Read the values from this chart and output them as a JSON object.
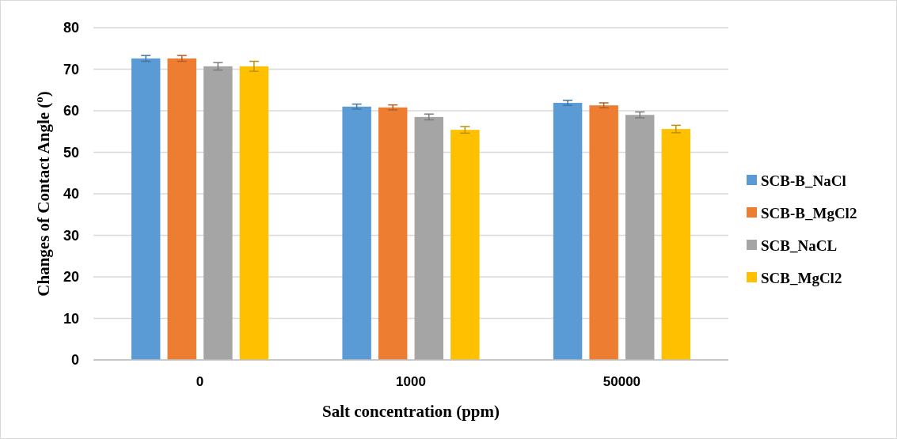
{
  "chart_data": {
    "type": "bar",
    "xlabel": "Salt concentration (ppm)",
    "ylabel": "Changes of Contact Angle ($^{o}$)",
    "categories": [
      "0",
      "1000",
      "50000"
    ],
    "series": [
      {
        "name": "SCB-B_NaCl",
        "color": "#5b9bd5",
        "values": [
          72.6,
          61.0,
          61.9
        ],
        "errors": [
          0.7,
          0.6,
          0.6
        ]
      },
      {
        "name": "SCB-B_MgCl2",
        "color": "#ed7d31",
        "values": [
          72.6,
          60.8,
          61.3
        ],
        "errors": [
          0.7,
          0.6,
          0.6
        ]
      },
      {
        "name": "SCB_NaCL",
        "color": "#a5a5a5",
        "values": [
          70.7,
          58.5,
          59.0
        ],
        "errors": [
          0.9,
          0.7,
          0.7
        ]
      },
      {
        "name": "SCB_MgCl2",
        "color": "#ffc000",
        "values": [
          70.7,
          55.4,
          55.6
        ],
        "errors": [
          1.2,
          0.8,
          0.9
        ]
      }
    ],
    "ylim": [
      0,
      80
    ],
    "yticks": [
      0,
      10,
      20,
      30,
      40,
      50,
      60,
      70,
      80
    ],
    "grid": "y",
    "legend": "right"
  }
}
